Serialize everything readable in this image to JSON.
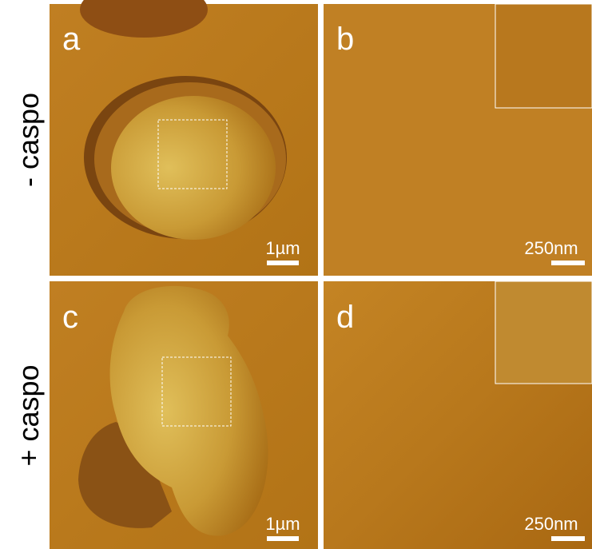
{
  "row_labels": [
    "- caspo",
    "+ caspo"
  ],
  "panels": [
    {
      "letter": "a",
      "scale_bar": "1µm"
    },
    {
      "letter": "b",
      "scale_bar": "250nm"
    },
    {
      "letter": "c",
      "scale_bar": "1µm"
    },
    {
      "letter": "d",
      "scale_bar": "250nm"
    }
  ]
}
